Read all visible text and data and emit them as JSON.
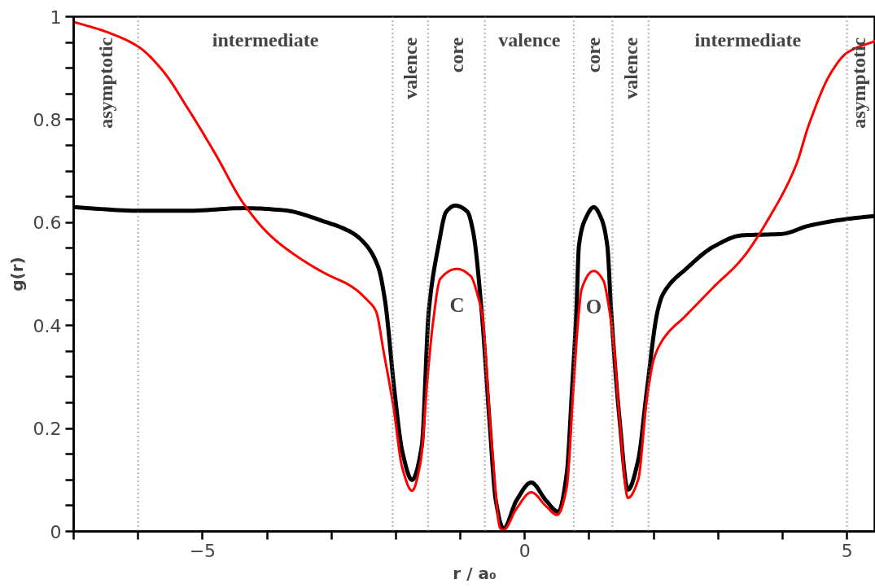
{
  "chart_data": {
    "type": "line",
    "xlabel": "r / a₀",
    "ylabel": "g(r)",
    "xlim": [
      -7,
      5.44
    ],
    "ylim": [
      0,
      1
    ],
    "xticks": [
      {
        "value": -7,
        "label": null
      },
      {
        "value": -6,
        "label": null
      },
      {
        "value": -5,
        "label": "−5"
      },
      {
        "value": -4,
        "label": null
      },
      {
        "value": -3,
        "label": null
      },
      {
        "value": -2,
        "label": null
      },
      {
        "value": -1,
        "label": null
      },
      0,
      {
        "value": 1,
        "label": null
      },
      {
        "value": 2,
        "label": null
      },
      {
        "value": 3,
        "label": null
      },
      {
        "value": 4,
        "label": null
      },
      5
    ],
    "yticks": [
      0,
      {
        "value": 0.05,
        "label": null
      },
      {
        "value": 0.1,
        "label": null
      },
      {
        "value": 0.15,
        "label": null
      },
      0.2,
      {
        "value": 0.25,
        "label": null
      },
      {
        "value": 0.3,
        "label": null
      },
      {
        "value": 0.35,
        "label": null
      },
      0.4,
      {
        "value": 0.45,
        "label": null
      },
      {
        "value": 0.5,
        "label": null
      },
      {
        "value": 0.55,
        "label": null
      },
      0.6,
      {
        "value": 0.65,
        "label": null
      },
      {
        "value": 0.7,
        "label": null
      },
      {
        "value": 0.75,
        "label": null
      },
      0.8,
      {
        "value": 0.85,
        "label": null
      },
      {
        "value": 0.9,
        "label": null
      },
      {
        "value": 0.95,
        "label": null
      },
      1
    ],
    "grid": false,
    "marker": "none",
    "line_style": "solid",
    "series": [
      {
        "color": "#000000",
        "x": [
          -7.0,
          -6.0,
          -5.21,
          -4.37,
          -3.74,
          -3.11,
          -2.69,
          -2.48,
          -2.27,
          -2.17,
          -2.02,
          -1.9,
          -1.75,
          -1.6,
          -1.49,
          -1.34,
          -1.22,
          -1.08,
          -0.89,
          -0.8,
          -0.67,
          -0.55,
          -0.45,
          -0.33,
          -0.13,
          0.1,
          0.33,
          0.52,
          0.65,
          0.73,
          0.8,
          0.84,
          0.94,
          1.07,
          1.19,
          1.28,
          1.34,
          1.47,
          1.6,
          1.76,
          1.89,
          2.06,
          2.14,
          2.52,
          2.94,
          3.36,
          3.99,
          4.41,
          5.0,
          5.44
        ],
        "values": [
          0.63,
          0.623,
          0.623,
          0.628,
          0.624,
          0.602,
          0.581,
          0.559,
          0.512,
          0.449,
          0.27,
          0.155,
          0.1,
          0.165,
          0.428,
          0.555,
          0.621,
          0.633,
          0.621,
          0.581,
          0.428,
          0.218,
          0.06,
          0.005,
          0.06,
          0.095,
          0.06,
          0.038,
          0.112,
          0.27,
          0.428,
          0.555,
          0.607,
          0.63,
          0.607,
          0.555,
          0.428,
          0.218,
          0.081,
          0.139,
          0.27,
          0.428,
          0.46,
          0.512,
          0.554,
          0.575,
          0.578,
          0.594,
          0.607,
          0.613
        ]
      },
      {
        "color": "#ff0000",
        "x": [
          -7.0,
          -6.48,
          -6.0,
          -5.63,
          -5.21,
          -4.8,
          -4.37,
          -3.95,
          -3.53,
          -3.11,
          -2.69,
          -2.44,
          -2.31,
          -2.19,
          -2.04,
          -1.9,
          -1.75,
          -1.62,
          -1.51,
          -1.43,
          -1.31,
          -1.05,
          -0.84,
          -0.71,
          -0.67,
          -0.51,
          -0.38,
          -0.33,
          -0.13,
          0.1,
          0.33,
          0.5,
          0.65,
          0.75,
          0.84,
          0.88,
          1.07,
          1.22,
          1.3,
          1.37,
          1.47,
          1.6,
          1.76,
          1.89,
          2.01,
          2.19,
          2.48,
          2.94,
          3.36,
          3.78,
          4.21,
          4.41,
          4.75,
          5.0,
          5.44
        ],
        "values": [
          0.99,
          0.97,
          0.942,
          0.897,
          0.818,
          0.733,
          0.638,
          0.575,
          0.534,
          0.502,
          0.476,
          0.449,
          0.428,
          0.349,
          0.243,
          0.123,
          0.079,
          0.133,
          0.297,
          0.4,
          0.491,
          0.51,
          0.496,
          0.449,
          0.428,
          0.165,
          0.006,
          0.003,
          0.044,
          0.076,
          0.049,
          0.032,
          0.085,
          0.27,
          0.428,
          0.47,
          0.506,
          0.487,
          0.439,
          0.376,
          0.218,
          0.065,
          0.101,
          0.254,
          0.338,
          0.381,
          0.417,
          0.476,
          0.528,
          0.607,
          0.712,
          0.791,
          0.891,
          0.93,
          0.953
        ]
      }
    ],
    "ref_lines": [
      {
        "axis": "x",
        "value": -6.0,
        "color": "#808080",
        "line_style": "dotted"
      },
      {
        "axis": "x",
        "value": -2.05,
        "color": "#808080",
        "line_style": "dotted"
      },
      {
        "axis": "x",
        "value": -1.5,
        "color": "#808080",
        "line_style": "dotted"
      },
      {
        "axis": "x",
        "value": -0.62,
        "color": "#808080",
        "line_style": "dotted"
      },
      {
        "axis": "x",
        "value": 0.76,
        "color": "#808080",
        "line_style": "dotted"
      },
      {
        "axis": "x",
        "value": 1.36,
        "color": "#808080",
        "line_style": "dotted"
      },
      {
        "axis": "x",
        "value": 1.92,
        "color": "#808080",
        "line_style": "dotted"
      },
      {
        "axis": "x",
        "value": 5.0,
        "color": "#808080",
        "line_style": "dotted"
      }
    ],
    "annotations": [
      "asymptotic",
      "intermediate",
      "valence",
      "core",
      "valence",
      "core",
      "valence",
      "intermediate",
      "asymptotic",
      {
        "text": "C",
        "x": -1.05,
        "y": 0.51
      },
      {
        "text": "O",
        "x": 1.07,
        "y": 0.506
      }
    ]
  }
}
